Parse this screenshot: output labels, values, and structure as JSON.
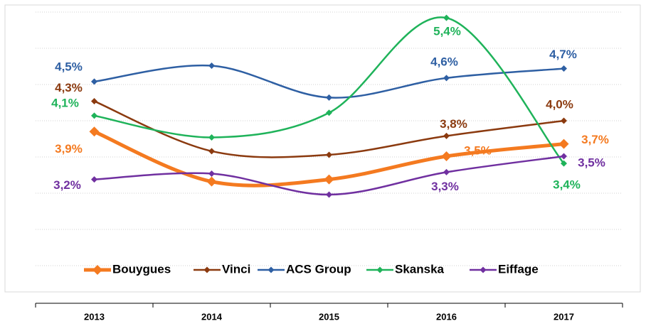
{
  "chart_data": {
    "type": "line",
    "categories": [
      "2013",
      "2014",
      "2015",
      "2016",
      "2017"
    ],
    "series": [
      {
        "name": "Bouygues",
        "color": "#f47a20",
        "values": [
          3.85,
          3.16,
          3.19,
          3.51,
          3.68
        ],
        "value_labels": [
          "3,9%",
          null,
          null,
          "3,5%",
          "3,7%"
        ]
      },
      {
        "name": "Vinci",
        "color": "#8b3a0f",
        "values": [
          4.27,
          3.58,
          3.53,
          3.79,
          4.0
        ],
        "value_labels": [
          "4,3%",
          null,
          null,
          "3,8%",
          "4,0%"
        ]
      },
      {
        "name": "ACS Group",
        "color": "#2e5fa3",
        "values": [
          4.54,
          4.76,
          4.32,
          4.59,
          4.72
        ],
        "value_labels": [
          "4,5%",
          null,
          null,
          "4,6%",
          "4,7%"
        ]
      },
      {
        "name": "Skanska",
        "color": "#1fb35a",
        "values": [
          4.07,
          3.77,
          4.11,
          5.42,
          3.41
        ],
        "value_labels": [
          "4,1%",
          null,
          null,
          "5,4%",
          "3,4%"
        ]
      },
      {
        "name": "Eiffage",
        "color": "#7030a0",
        "values": [
          3.19,
          3.27,
          2.98,
          3.29,
          3.51
        ],
        "value_labels": [
          "3,2%",
          null,
          null,
          "3,3%",
          "3,5%"
        ]
      }
    ],
    "ylim": [
      1.5,
      5.5
    ],
    "yticks": [
      2.0,
      2.5,
      3.0,
      3.5,
      4.0,
      4.5,
      5.0,
      5.5
    ],
    "grid": true,
    "legend": "bottom"
  }
}
